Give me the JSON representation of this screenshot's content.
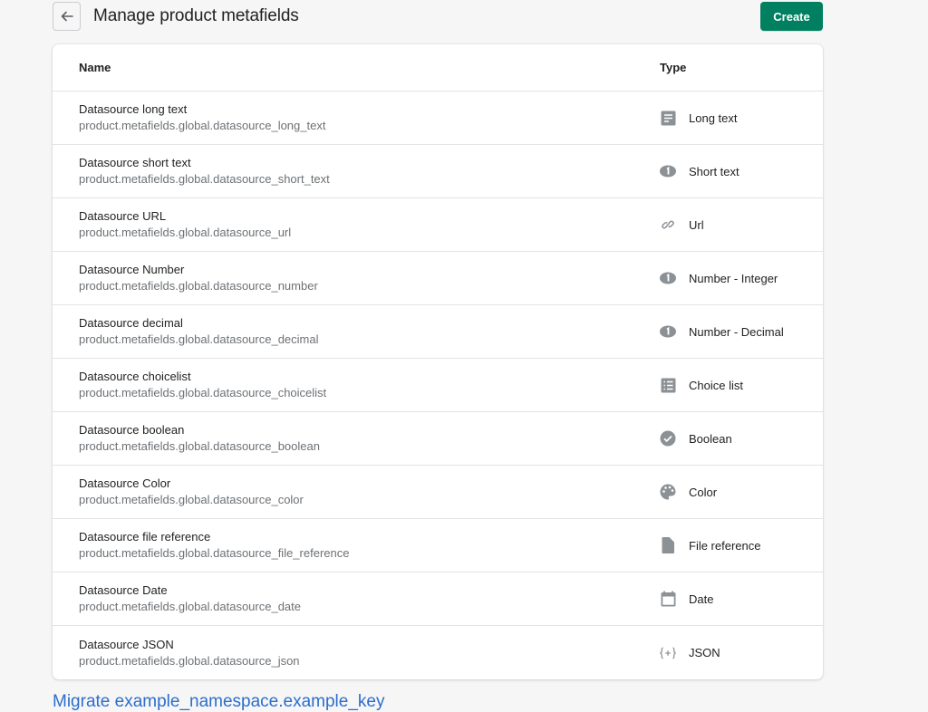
{
  "header": {
    "title": "Manage product metafields",
    "create_label": "Create"
  },
  "table": {
    "columns": [
      "Name",
      "Type"
    ],
    "rows": [
      {
        "name": "Datasource long text",
        "key": "product.metafields.global.datasource_long_text",
        "type": "Long text",
        "icon": "long-text-icon"
      },
      {
        "name": "Datasource short text",
        "key": "product.metafields.global.datasource_short_text",
        "type": "Short text",
        "icon": "short-text-icon"
      },
      {
        "name": "Datasource URL",
        "key": "product.metafields.global.datasource_url",
        "type": "Url",
        "icon": "link-icon"
      },
      {
        "name": "Datasource Number",
        "key": "product.metafields.global.datasource_number",
        "type": "Number - Integer",
        "icon": "number-icon"
      },
      {
        "name": "Datasource decimal",
        "key": "product.metafields.global.datasource_decimal",
        "type": "Number - Decimal",
        "icon": "number-icon"
      },
      {
        "name": "Datasource choicelist",
        "key": "product.metafields.global.datasource_choicelist",
        "type": "Choice list",
        "icon": "list-icon"
      },
      {
        "name": "Datasource boolean",
        "key": "product.metafields.global.datasource_boolean",
        "type": "Boolean",
        "icon": "checkmark-icon"
      },
      {
        "name": "Datasource Color",
        "key": "product.metafields.global.datasource_color",
        "type": "Color",
        "icon": "palette-icon"
      },
      {
        "name": "Datasource file reference",
        "key": "product.metafields.global.datasource_file_reference",
        "type": "File reference",
        "icon": "file-icon"
      },
      {
        "name": "Datasource Date",
        "key": "product.metafields.global.datasource_date",
        "type": "Date",
        "icon": "calendar-icon"
      },
      {
        "name": "Datasource JSON",
        "key": "product.metafields.global.datasource_json",
        "type": "JSON",
        "icon": "json-icon"
      }
    ]
  },
  "footer": {
    "migrate_link": "Migrate example_namespace.example_key"
  },
  "colors": {
    "primary": "#008060",
    "link": "#2c6ecb",
    "icon": "#8c9196"
  }
}
